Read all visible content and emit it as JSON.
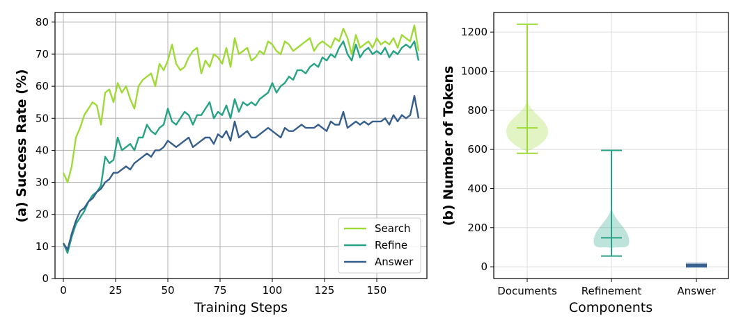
{
  "chart_data": [
    {
      "type": "line",
      "title": "",
      "xlabel": "Training Steps",
      "ylabel": "(a) Success Rate (%)",
      "xlim": [
        -4,
        174
      ],
      "ylim": [
        0,
        83
      ],
      "xticks": [
        0,
        25,
        50,
        75,
        100,
        125,
        150
      ],
      "yticks": [
        0,
        10,
        20,
        30,
        40,
        50,
        60,
        70,
        80
      ],
      "grid": true,
      "legend": "bottom-right",
      "x": [
        0,
        2,
        4,
        6,
        8,
        10,
        12,
        14,
        16,
        18,
        20,
        22,
        24,
        26,
        28,
        30,
        32,
        34,
        36,
        38,
        40,
        42,
        44,
        46,
        48,
        50,
        52,
        54,
        56,
        58,
        60,
        62,
        64,
        66,
        68,
        70,
        72,
        74,
        76,
        78,
        80,
        82,
        84,
        86,
        88,
        90,
        92,
        94,
        96,
        98,
        100,
        102,
        104,
        106,
        108,
        110,
        112,
        114,
        116,
        118,
        120,
        122,
        124,
        126,
        128,
        130,
        132,
        134,
        136,
        138,
        140,
        142,
        144,
        146,
        148,
        150,
        152,
        154,
        156,
        158,
        160,
        162,
        164,
        166,
        168,
        170
      ],
      "series": [
        {
          "name": "Search",
          "color": "#a0da39",
          "values": [
            33,
            30,
            35,
            44,
            47,
            51,
            53,
            55,
            54,
            48,
            58,
            59,
            55,
            61,
            58,
            60,
            56,
            53,
            60,
            62,
            63,
            64,
            60,
            67,
            65,
            68,
            73,
            67,
            65,
            66,
            69,
            71,
            72,
            64,
            68,
            66,
            70,
            69,
            67,
            72,
            66,
            75,
            70,
            71,
            72,
            68,
            69,
            71,
            70,
            74,
            73,
            71,
            70,
            74,
            73,
            71,
            72,
            73,
            74,
            75,
            71,
            73,
            74,
            73,
            72,
            75,
            74,
            78,
            75,
            70,
            76,
            72,
            73,
            74,
            72,
            75,
            73,
            74,
            73,
            75,
            72,
            76,
            75,
            74,
            79,
            71
          ]
        },
        {
          "name": "Refine",
          "color": "#26a386",
          "values": [
            11,
            8,
            13,
            17,
            19,
            21,
            24,
            26,
            27,
            29,
            38,
            36,
            37,
            44,
            40,
            41,
            42,
            40,
            44,
            44,
            48,
            46,
            45,
            47,
            48,
            53,
            49,
            48,
            50,
            52,
            51,
            48,
            51,
            51,
            53,
            55,
            50,
            52,
            51,
            54,
            50,
            56,
            52,
            55,
            54,
            55,
            54,
            56,
            57,
            58,
            61,
            58,
            60,
            61,
            63,
            62,
            65,
            65,
            64,
            66,
            67,
            66,
            69,
            68,
            70,
            69,
            72,
            74,
            70,
            68,
            73,
            69,
            71,
            72,
            70,
            71,
            70,
            72,
            69,
            71,
            70,
            72,
            73,
            72,
            74,
            68
          ]
        },
        {
          "name": "Answer",
          "color": "#355e8d",
          "values": [
            11,
            9,
            14,
            18,
            21,
            22,
            24,
            25,
            27,
            28,
            30,
            31,
            33,
            33,
            34,
            35,
            34,
            36,
            37,
            38,
            39,
            38,
            40,
            40,
            41,
            43,
            42,
            41,
            42,
            43,
            44,
            41,
            42,
            43,
            44,
            44,
            42,
            45,
            44,
            46,
            43,
            49,
            44,
            45,
            46,
            44,
            44,
            45,
            46,
            47,
            46,
            45,
            44,
            47,
            46,
            46,
            47,
            48,
            47,
            47,
            47,
            48,
            47,
            46,
            49,
            48,
            48,
            52,
            47,
            48,
            49,
            48,
            49,
            48,
            49,
            49,
            49,
            50,
            48,
            51,
            49,
            51,
            50,
            51,
            57,
            50
          ]
        }
      ]
    },
    {
      "type": "violin",
      "title": "",
      "xlabel": "Components",
      "ylabel": "(b) Number of Tokens",
      "ylim": [
        -60,
        1300
      ],
      "yticks": [
        0,
        200,
        400,
        600,
        800,
        1000,
        1200
      ],
      "grid": true,
      "categories": [
        "Documents",
        "Refinement",
        "Answer"
      ],
      "colors": [
        "#a0da39",
        "#26a386",
        "#355e8d"
      ],
      "violins": [
        {
          "name": "Documents",
          "min": 580,
          "max": 1240,
          "median": 710,
          "peak": 690,
          "width": 1.0
        },
        {
          "name": "Refinement",
          "min": 55,
          "max": 595,
          "median": 148,
          "peak": 130,
          "width": 0.85
        },
        {
          "name": "Answer",
          "min": 0,
          "max": 12,
          "median": 5,
          "peak": 6,
          "width": 0.4
        }
      ]
    }
  ]
}
